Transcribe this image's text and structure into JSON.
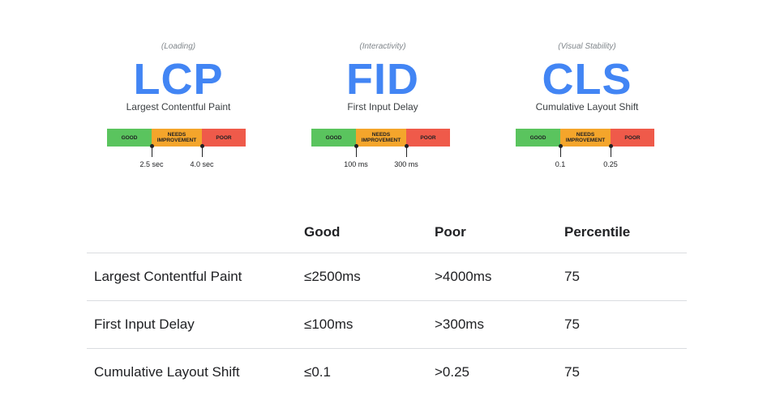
{
  "metrics": [
    {
      "category": "(Loading)",
      "abbr": "LCP",
      "name": "Largest Contentful Paint",
      "segments": {
        "good": "GOOD",
        "needs_improvement": "NEEDS IMPROVEMENT",
        "poor": "POOR"
      },
      "thresholds": [
        "2.5 sec",
        "4.0 sec"
      ]
    },
    {
      "category": "(Interactivity)",
      "abbr": "FID",
      "name": "First Input Delay",
      "segments": {
        "good": "GOOD",
        "needs_improvement": "NEEDS IMPROVEMENT",
        "poor": "POOR"
      },
      "thresholds": [
        "100 ms",
        "300 ms"
      ]
    },
    {
      "category": "(Visual Stability)",
      "abbr": "CLS",
      "name": "Cumulative Layout Shift",
      "segments": {
        "good": "GOOD",
        "needs_improvement": "NEEDS IMPROVEMENT",
        "poor": "POOR"
      },
      "thresholds": [
        "0.1",
        "0.25"
      ]
    }
  ],
  "colors": {
    "good": "#5ac45e",
    "needs_improvement": "#f4a52b",
    "poor": "#ef5a4a",
    "accent": "#4285f4"
  },
  "table": {
    "headers": [
      "",
      "Good",
      "Poor",
      "Percentile"
    ],
    "rows": [
      [
        "Largest Contentful Paint",
        "≤2500ms",
        ">4000ms",
        "75"
      ],
      [
        "First Input Delay",
        "≤100ms",
        ">300ms",
        "75"
      ],
      [
        "Cumulative Layout Shift",
        "≤0.1",
        ">0.25",
        "75"
      ]
    ]
  }
}
